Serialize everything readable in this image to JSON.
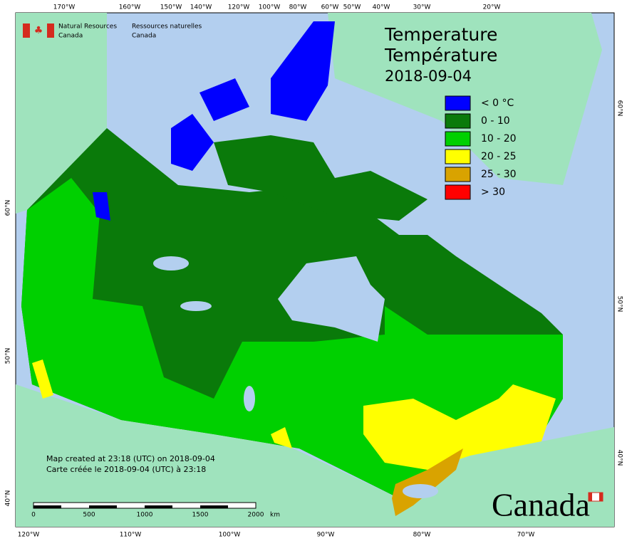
{
  "header": {
    "department_en": [
      "Natural Resources",
      "Canada"
    ],
    "department_fr": [
      "Ressources naturelles",
      "Canada"
    ]
  },
  "title": {
    "line1": "Temperature",
    "line2": "Température",
    "date": "2018-09-04"
  },
  "legend": {
    "items": [
      {
        "label": "< 0 °C",
        "color": "#0000ff"
      },
      {
        "label": "0 - 10",
        "color": "#0a7a0a"
      },
      {
        "label": "10 - 20",
        "color": "#00d000"
      },
      {
        "label": "20 - 25",
        "color": "#ffff00"
      },
      {
        "label": "25 - 30",
        "color": "#d9a300"
      },
      {
        "label": "> 30",
        "color": "#ff0000"
      }
    ]
  },
  "credit": [
    "Map created at 23:18 (UTC) on 2018-09-04",
    "Carte créée le 2018-09-04 (UTC) à 23:18"
  ],
  "scale_bar": {
    "labels": [
      "0",
      "500",
      "1000",
      "1500",
      "2000"
    ],
    "unit": "km"
  },
  "graticule": {
    "top": [
      "170°W",
      "160°W",
      "150°W",
      "140°W",
      "120°W",
      "100°W",
      "80°W",
      "60°W",
      "50°W",
      "40°W",
      "30°W",
      "20°W"
    ],
    "bottom": [
      "120°W",
      "110°W",
      "100°W",
      "90°W",
      "80°W",
      "70°W"
    ],
    "left": [
      "60°N",
      "50°N",
      "40°N"
    ],
    "right": [
      "60°N",
      "50°N",
      "40°N"
    ]
  },
  "wordmark": "Canada"
}
